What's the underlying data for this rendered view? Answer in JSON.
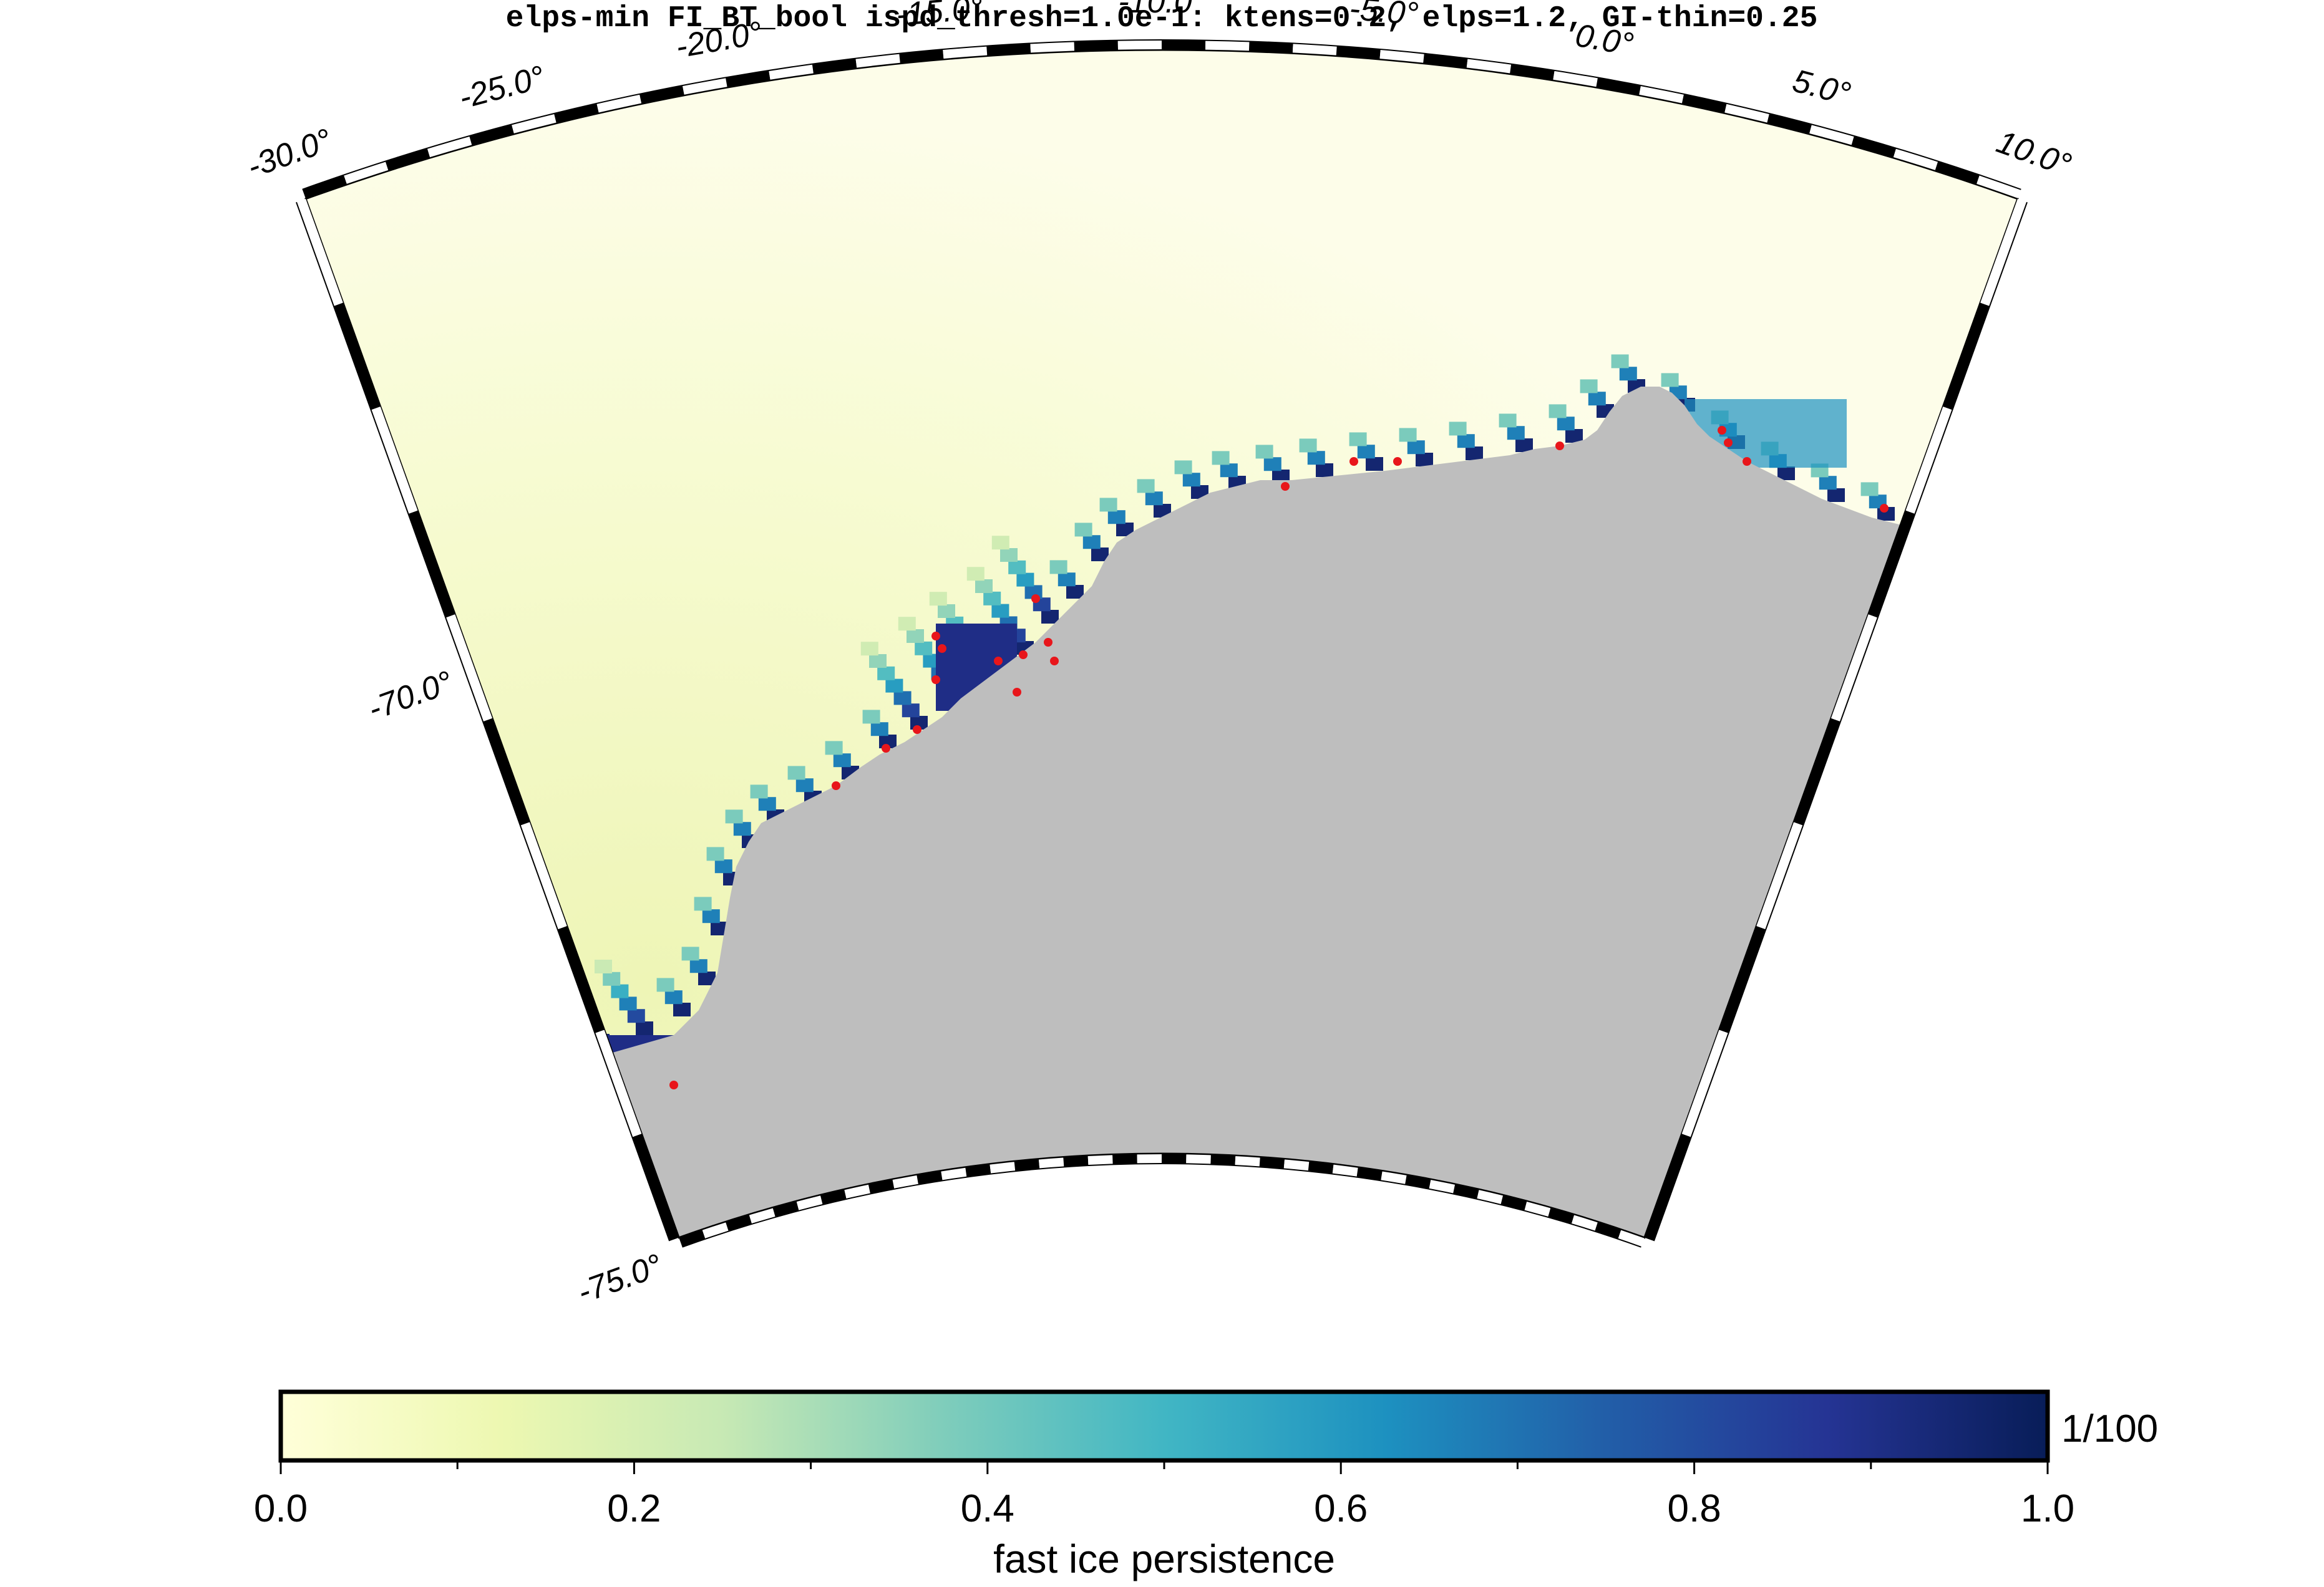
{
  "title": "elps-min FI_BT_bool ispd_thresh=1.0e-1: ktens=0.2, elps=1.2, GI-thin=0.25",
  "map": {
    "longitude_labels": [
      "-30.0°",
      "-25.0°",
      "-20.0°",
      "-15.0°",
      "-10.0°",
      "-5.0°",
      "0.0°",
      "5.0°",
      "10.0°"
    ],
    "latitude_labels": [
      "-70.0°",
      "-75.0°"
    ],
    "colors": {
      "land": "#bebebe",
      "grounded_iceberg_marker": "#e8161b",
      "frame": "#000000"
    }
  },
  "colorbar": {
    "ticks": [
      "0.0",
      "0.2",
      "0.4",
      "0.6",
      "0.8",
      "1.0"
    ],
    "scale_note": "1/100",
    "label": "fast ice persistence",
    "range": [
      0.0,
      1.0
    ],
    "colormap": "YlGnBu",
    "stops": [
      "#ffffd9",
      "#edf8b1",
      "#c7e9b4",
      "#7fcdbb",
      "#41b6c4",
      "#1d91c0",
      "#225ea8",
      "#253494",
      "#081d58"
    ]
  }
}
